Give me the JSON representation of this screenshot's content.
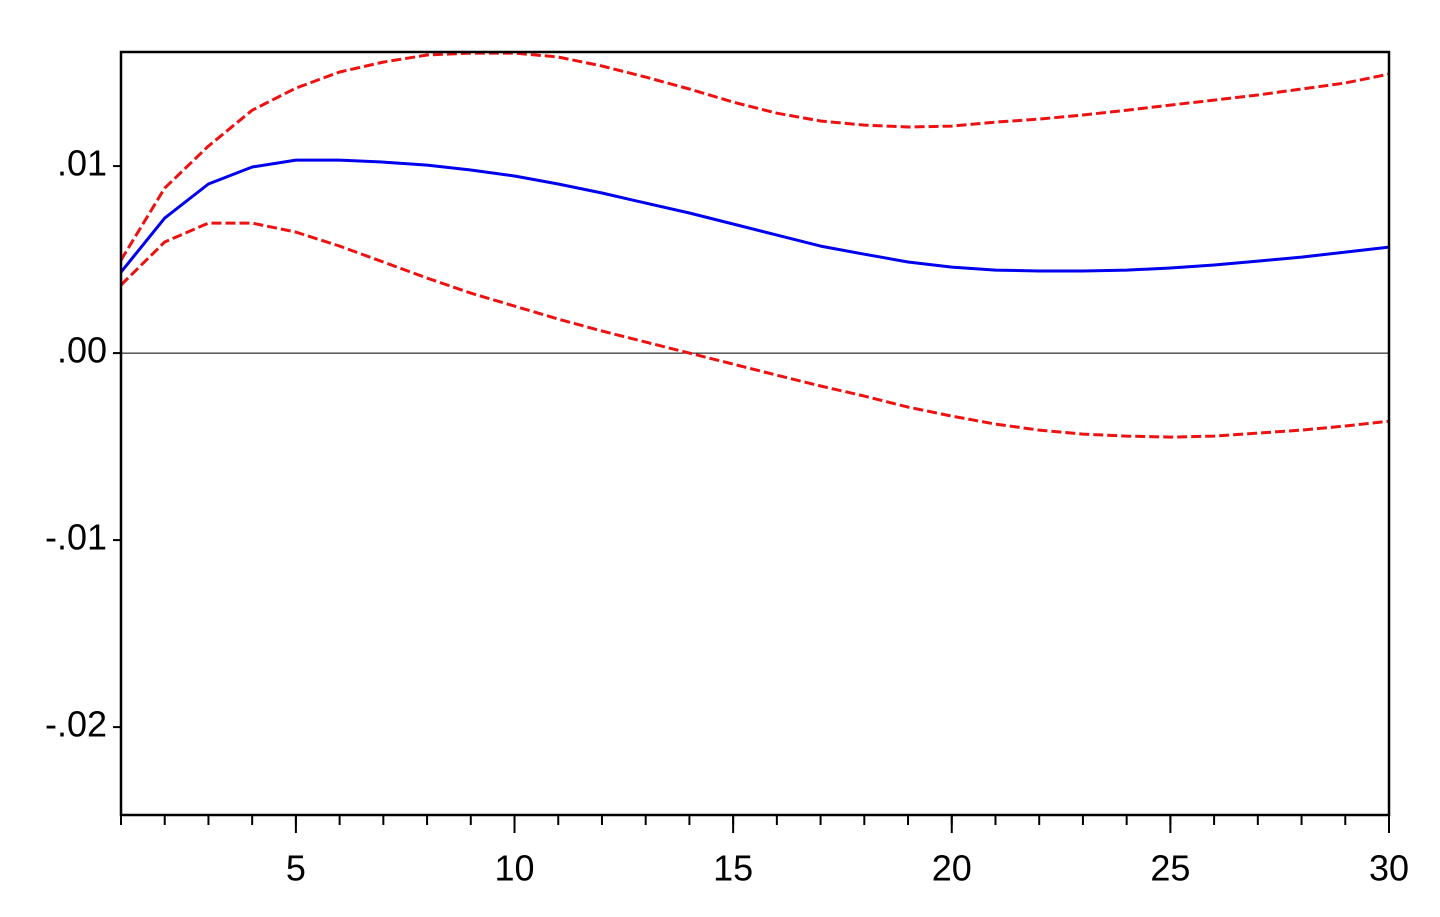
{
  "chart_data": {
    "type": "line",
    "x": [
      1,
      2,
      3,
      4,
      5,
      6,
      7,
      8,
      9,
      10,
      11,
      12,
      13,
      14,
      15,
      16,
      17,
      18,
      19,
      20,
      21,
      22,
      23,
      24,
      25,
      26,
      27,
      28,
      29,
      30
    ],
    "series": [
      {
        "color": "#0000ee",
        "dashed": false,
        "values": [
          0.00433,
          0.00722,
          0.00904,
          0.00995,
          0.01032,
          0.01032,
          0.01021,
          0.01005,
          0.00979,
          0.00947,
          0.00904,
          0.00856,
          0.00802,
          0.00749,
          0.0069,
          0.00631,
          0.00572,
          0.00529,
          0.00487,
          0.0046,
          0.00444,
          0.00439,
          0.00439,
          0.00444,
          0.00455,
          0.00471,
          0.00492,
          0.00513,
          0.0054,
          0.00567
        ]
      },
      {
        "color": "#ee1111",
        "dashed": true,
        "values": [
          0.00497,
          0.00882,
          0.01107,
          0.01299,
          0.01417,
          0.01503,
          0.01556,
          0.01594,
          0.01604,
          0.01604,
          0.01583,
          0.01535,
          0.01476,
          0.01412,
          0.01342,
          0.01283,
          0.01241,
          0.01219,
          0.01209,
          0.01214,
          0.01235,
          0.01251,
          0.01273,
          0.01299,
          0.01326,
          0.01353,
          0.0138,
          0.01412,
          0.01444,
          0.01492
        ]
      },
      {
        "color": "#ee1111",
        "dashed": true,
        "values": [
          0.00364,
          0.00594,
          0.00695,
          0.00695,
          0.00647,
          0.00572,
          0.00487,
          0.00401,
          0.00321,
          0.00251,
          0.00182,
          0.00118,
          0.00059,
          0,
          -0.00059,
          -0.00118,
          -0.00176,
          -0.0023,
          -0.00289,
          -0.00337,
          -0.0038,
          -0.00412,
          -0.00433,
          -0.00444,
          -0.00449,
          -0.00444,
          -0.00428,
          -0.00412,
          -0.0039,
          -0.00364
        ]
      }
    ],
    "xlim": [
      1,
      30
    ],
    "xticks": [
      5,
      10,
      15,
      20,
      25,
      30
    ],
    "x_minor_ticks": [
      1,
      2,
      3,
      4,
      5,
      6,
      7,
      8,
      9,
      10,
      11,
      12,
      13,
      14,
      15,
      16,
      17,
      18,
      19,
      20,
      21,
      22,
      23,
      24,
      25,
      26,
      27,
      28,
      29,
      30
    ],
    "ylim": [
      -0.0247,
      0.0161
    ],
    "yticks": [
      {
        "value": 0.01,
        "label": ".01"
      },
      {
        "value": 0,
        "label": ".00"
      },
      {
        "value": -0.01,
        "label": "-.01"
      },
      {
        "value": -0.02,
        "label": "-.02"
      }
    ],
    "zero_line": true
  }
}
